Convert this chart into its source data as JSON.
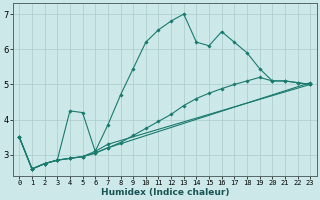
{
  "xlabel": "Humidex (Indice chaleur)",
  "bg_color": "#cce8e8",
  "line_color": "#1a7a6e",
  "grid_color": "#aacccc",
  "xlim": [
    -0.5,
    23.5
  ],
  "ylim": [
    2.4,
    7.3
  ],
  "xticks": [
    0,
    1,
    2,
    3,
    4,
    5,
    6,
    7,
    8,
    9,
    10,
    11,
    12,
    13,
    14,
    15,
    16,
    17,
    18,
    19,
    20,
    21,
    22,
    23
  ],
  "yticks": [
    3,
    4,
    5,
    6,
    7
  ],
  "lines": [
    {
      "x": [
        0,
        1,
        2,
        3,
        4,
        5,
        6,
        7,
        8,
        9,
        10,
        11,
        12,
        13,
        14,
        15,
        16,
        17,
        18,
        19,
        20,
        21,
        22,
        23
      ],
      "y": [
        3.5,
        2.6,
        2.75,
        2.85,
        4.25,
        4.2,
        3.1,
        3.85,
        4.7,
        5.45,
        6.2,
        6.55,
        6.8,
        7.0,
        6.2,
        6.1,
        6.5,
        6.2,
        5.9,
        5.45,
        5.1,
        5.1,
        5.05,
        5.0
      ]
    },
    {
      "x": [
        0,
        1,
        2,
        3,
        4,
        5,
        6,
        7,
        8,
        9,
        10,
        11,
        12,
        13,
        14,
        15,
        16,
        17,
        18,
        19,
        20,
        21,
        22,
        23
      ],
      "y": [
        3.5,
        2.6,
        2.75,
        2.85,
        2.9,
        2.95,
        3.05,
        3.2,
        3.35,
        3.55,
        3.75,
        3.95,
        4.15,
        4.4,
        4.6,
        4.75,
        4.88,
        5.0,
        5.1,
        5.2,
        5.1,
        5.1,
        5.05,
        5.0
      ]
    },
    {
      "x": [
        0,
        1,
        2,
        3,
        4,
        5,
        6,
        7,
        23
      ],
      "y": [
        3.5,
        2.6,
        2.75,
        2.85,
        2.9,
        2.95,
        3.05,
        3.2,
        5.05
      ]
    },
    {
      "x": [
        0,
        1,
        2,
        3,
        4,
        5,
        6,
        7,
        23
      ],
      "y": [
        3.5,
        2.6,
        2.75,
        2.85,
        2.9,
        2.95,
        3.1,
        3.3,
        5.0
      ]
    }
  ]
}
